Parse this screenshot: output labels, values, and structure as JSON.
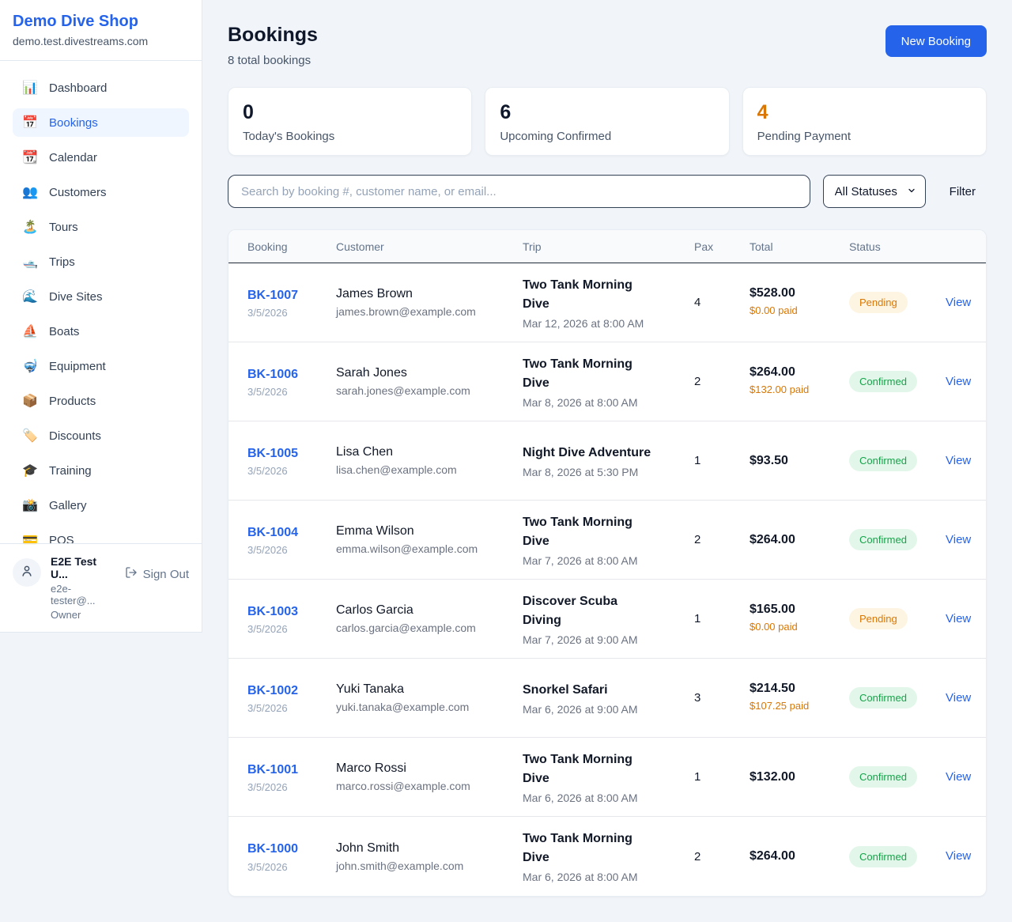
{
  "brand": {
    "name": "Demo Dive Shop",
    "domain": "demo.test.divestreams.com"
  },
  "sidebar": {
    "items": [
      {
        "key": "dashboard",
        "label": "Dashboard",
        "icon": "📊",
        "icon_name": "bar-chart-icon",
        "active": false
      },
      {
        "key": "bookings",
        "label": "Bookings",
        "icon": "📅",
        "icon_name": "calendar-icon",
        "active": true
      },
      {
        "key": "calendar",
        "label": "Calendar",
        "icon": "📆",
        "icon_name": "tear-off-calendar-icon",
        "active": false
      },
      {
        "key": "customers",
        "label": "Customers",
        "icon": "👥",
        "icon_name": "people-icon",
        "active": false
      },
      {
        "key": "tours",
        "label": "Tours",
        "icon": "🏝️",
        "icon_name": "island-icon",
        "active": false
      },
      {
        "key": "trips",
        "label": "Trips",
        "icon": "🛥️",
        "icon_name": "motorboat-icon",
        "active": false
      },
      {
        "key": "dive-sites",
        "label": "Dive Sites",
        "icon": "🌊",
        "icon_name": "wave-icon",
        "active": false
      },
      {
        "key": "boats",
        "label": "Boats",
        "icon": "⛵",
        "icon_name": "sailboat-icon",
        "active": false
      },
      {
        "key": "equipment",
        "label": "Equipment",
        "icon": "🤿",
        "icon_name": "diving-mask-icon",
        "active": false
      },
      {
        "key": "products",
        "label": "Products",
        "icon": "📦",
        "icon_name": "package-icon",
        "active": false
      },
      {
        "key": "discounts",
        "label": "Discounts",
        "icon": "🏷️",
        "icon_name": "tag-icon",
        "active": false
      },
      {
        "key": "training",
        "label": "Training",
        "icon": "🎓",
        "icon_name": "graduation-cap-icon",
        "active": false
      },
      {
        "key": "gallery",
        "label": "Gallery",
        "icon": "📸",
        "icon_name": "camera-icon",
        "active": false
      },
      {
        "key": "pos",
        "label": "POS",
        "icon": "💳",
        "icon_name": "credit-card-icon",
        "active": false
      }
    ]
  },
  "user": {
    "name": "E2E Test U...",
    "email": "e2e-tester@...",
    "role": "Owner",
    "sign_out_label": "Sign Out"
  },
  "header": {
    "title": "Bookings",
    "subtitle": "8 total bookings",
    "new_booking_label": "New Booking"
  },
  "stats": [
    {
      "value": "0",
      "label": "Today's Bookings",
      "color": "#0f172a"
    },
    {
      "value": "6",
      "label": "Upcoming Confirmed",
      "color": "#0f172a"
    },
    {
      "value": "4",
      "label": "Pending Payment",
      "color": "#d97706"
    }
  ],
  "filters": {
    "search_placeholder": "Search by booking #, customer name, or email...",
    "status_selected": "All Statuses",
    "filter_label": "Filter"
  },
  "table": {
    "columns": [
      "Booking",
      "Customer",
      "Trip",
      "Pax",
      "Total",
      "Status"
    ],
    "view_label": "View",
    "rows": [
      {
        "id": "BK-1007",
        "date": "3/5/2026",
        "customer": "James Brown",
        "email": "james.brown@example.com",
        "trip": "Two Tank Morning Dive",
        "trip_time": "Mar 12, 2026 at 8:00 AM",
        "pax": "4",
        "total": "$528.00",
        "paid": "$0.00 paid",
        "status": "Pending"
      },
      {
        "id": "BK-1006",
        "date": "3/5/2026",
        "customer": "Sarah Jones",
        "email": "sarah.jones@example.com",
        "trip": "Two Tank Morning Dive",
        "trip_time": "Mar 8, 2026 at 8:00 AM",
        "pax": "2",
        "total": "$264.00",
        "paid": "$132.00 paid",
        "status": "Confirmed"
      },
      {
        "id": "BK-1005",
        "date": "3/5/2026",
        "customer": "Lisa Chen",
        "email": "lisa.chen@example.com",
        "trip": "Night Dive Adventure",
        "trip_time": "Mar 8, 2026 at 5:30 PM",
        "pax": "1",
        "total": "$93.50",
        "paid": "",
        "status": "Confirmed"
      },
      {
        "id": "BK-1004",
        "date": "3/5/2026",
        "customer": "Emma Wilson",
        "email": "emma.wilson@example.com",
        "trip": "Two Tank Morning Dive",
        "trip_time": "Mar 7, 2026 at 8:00 AM",
        "pax": "2",
        "total": "$264.00",
        "paid": "",
        "status": "Confirmed"
      },
      {
        "id": "BK-1003",
        "date": "3/5/2026",
        "customer": "Carlos Garcia",
        "email": "carlos.garcia@example.com",
        "trip": "Discover Scuba Diving",
        "trip_time": "Mar 7, 2026 at 9:00 AM",
        "pax": "1",
        "total": "$165.00",
        "paid": "$0.00 paid",
        "status": "Pending"
      },
      {
        "id": "BK-1002",
        "date": "3/5/2026",
        "customer": "Yuki Tanaka",
        "email": "yuki.tanaka@example.com",
        "trip": "Snorkel Safari",
        "trip_time": "Mar 6, 2026 at 9:00 AM",
        "pax": "3",
        "total": "$214.50",
        "paid": "$107.25 paid",
        "status": "Confirmed"
      },
      {
        "id": "BK-1001",
        "date": "3/5/2026",
        "customer": "Marco Rossi",
        "email": "marco.rossi@example.com",
        "trip": "Two Tank Morning Dive",
        "trip_time": "Mar 6, 2026 at 8:00 AM",
        "pax": "1",
        "total": "$132.00",
        "paid": "",
        "status": "Confirmed"
      },
      {
        "id": "BK-1000",
        "date": "3/5/2026",
        "customer": "John Smith",
        "email": "john.smith@example.com",
        "trip": "Two Tank Morning Dive",
        "trip_time": "Mar 6, 2026 at 8:00 AM",
        "pax": "2",
        "total": "$264.00",
        "paid": "",
        "status": "Confirmed"
      }
    ]
  },
  "colors": {
    "accent_blue": "#2563eb",
    "pending_text": "#d97706",
    "pending_bg": "#fdf5e1",
    "confirmed_text": "#16a34a",
    "confirmed_bg": "#e2f7ea",
    "page_bg": "#f1f5f9"
  }
}
